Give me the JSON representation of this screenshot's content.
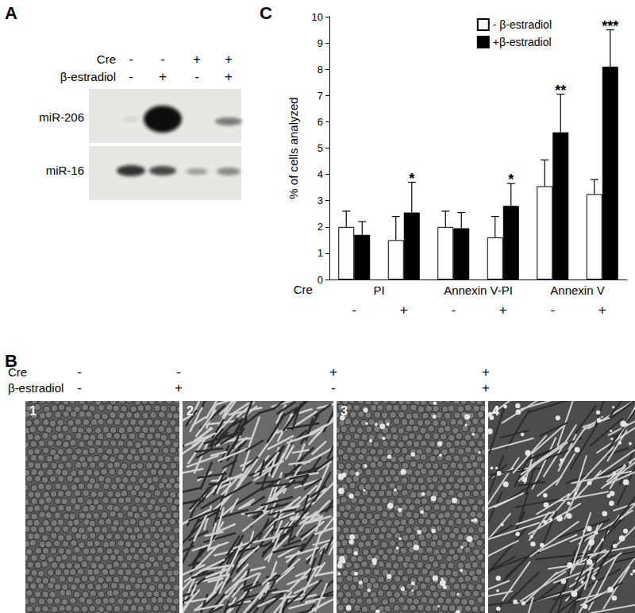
{
  "blot": {
    "label": "A",
    "rows": [
      {
        "label": "Cre",
        "signs": [
          "-",
          "-",
          "+",
          "+"
        ]
      },
      {
        "label": "β-estradiol",
        "signs": [
          "-",
          "+",
          "-",
          "+"
        ]
      }
    ],
    "bands": [
      "miR-206",
      "miR-16"
    ]
  },
  "micrographs": {
    "label": "B",
    "rows": [
      {
        "label": "Cre",
        "signs": [
          "-",
          "-",
          "+",
          "+"
        ]
      },
      {
        "label": "β-estradiol",
        "signs": [
          "-",
          "+",
          "-",
          "+"
        ]
      }
    ],
    "images": [
      "1",
      "2",
      "3",
      "4"
    ]
  },
  "chart_data": {
    "type": "bar",
    "title": "C",
    "ylabel": "% of cells analyzed",
    "ylim": [
      0,
      10
    ],
    "yticks": [
      0,
      1,
      2,
      3,
      4,
      5,
      6,
      7,
      8,
      9,
      10
    ],
    "categories": [
      "-",
      "+",
      "-",
      "+",
      "-",
      "+"
    ],
    "category_title": "Cre",
    "category_groups": [
      "PI",
      "Annexin V-PI",
      "Annexin V"
    ],
    "series": [
      {
        "name": "- β-estradiol",
        "color": "#ffffff",
        "values": [
          2.0,
          1.5,
          2.0,
          1.6,
          3.55,
          3.25
        ],
        "errors": [
          0.6,
          0.9,
          0.6,
          0.8,
          1.0,
          0.55
        ]
      },
      {
        "name": "+β-estradiol",
        "color": "#000000",
        "values": [
          1.7,
          2.55,
          1.95,
          2.8,
          5.6,
          8.1
        ],
        "errors": [
          0.5,
          1.15,
          0.6,
          0.85,
          1.45,
          1.4
        ],
        "significance": [
          null,
          "*",
          null,
          "*",
          "**",
          "***"
        ]
      }
    ],
    "legend": "top-right",
    "grid": false
  }
}
